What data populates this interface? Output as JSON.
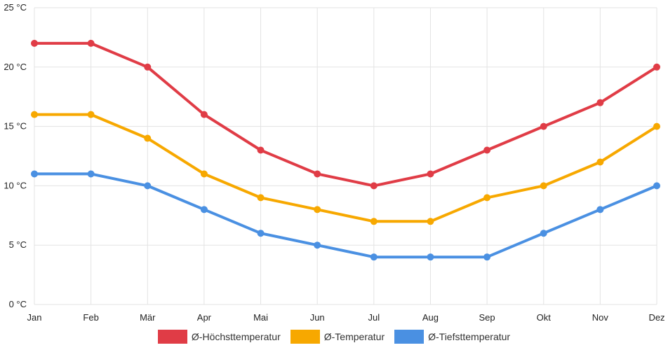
{
  "chart_data": {
    "type": "line",
    "categories": [
      "Jan",
      "Feb",
      "Mär",
      "Apr",
      "Mai",
      "Jun",
      "Jul",
      "Aug",
      "Sep",
      "Okt",
      "Nov",
      "Dez"
    ],
    "unit": "°C",
    "ylim": [
      0,
      25
    ],
    "yticks": [
      0,
      5,
      10,
      15,
      20,
      25
    ],
    "grid": true,
    "legend_position": "bottom-center",
    "series": [
      {
        "name": "Ø-Höchsttemperatur",
        "color": "#e03c46",
        "values": [
          22,
          22,
          20,
          16,
          13,
          11,
          10,
          11,
          13,
          15,
          17,
          20
        ]
      },
      {
        "name": "Ø-Temperatur",
        "color": "#f7a800",
        "values": [
          16,
          16,
          14,
          11,
          9,
          8,
          7,
          7,
          9,
          10,
          12,
          15
        ]
      },
      {
        "name": "Ø-Tiefsttemperatur",
        "color": "#4a90e2",
        "values": [
          11,
          11,
          10,
          8,
          6,
          5,
          4,
          4,
          4,
          6,
          8,
          10
        ]
      }
    ]
  }
}
